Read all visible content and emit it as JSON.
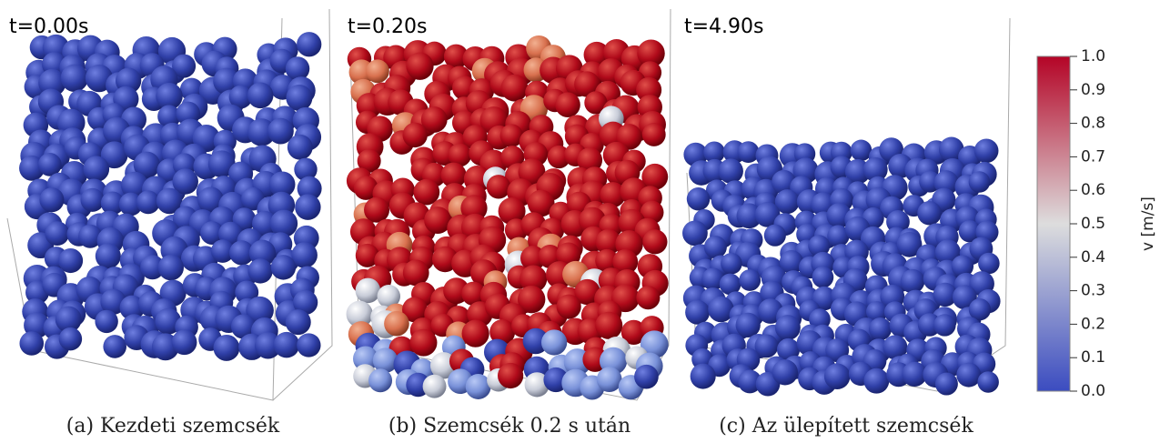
{
  "panels": [
    {
      "time": "t=0.00s",
      "caption": "(a) Kezdeti szemcsék"
    },
    {
      "time": "t=0.20s",
      "caption": "(b) Szemcsék 0.2 s után"
    },
    {
      "time": "t=4.90s",
      "caption": "(c) Az ülepített szemcsék"
    }
  ],
  "colorbar": {
    "label": "v [m/s]",
    "lim": [
      0,
      1
    ],
    "ticks": [
      {
        "value": 0,
        "label": "0.0"
      },
      0.1,
      0.2,
      0.3,
      0.4,
      0.5,
      0.6,
      0.7,
      0.8,
      0.9,
      {
        "value": 1,
        "label": "1.0"
      }
    ],
    "colors": [
      "#3b4cc0",
      "#dddddd",
      "#b40426"
    ]
  }
}
